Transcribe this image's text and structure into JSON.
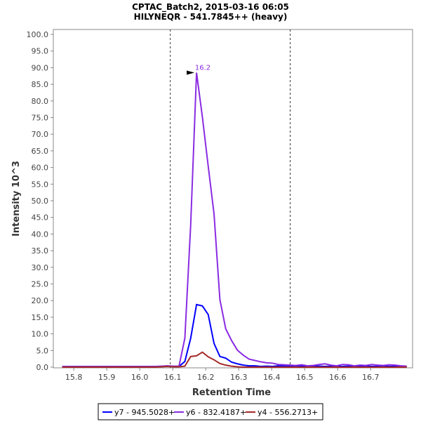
{
  "chart_data": {
    "type": "line",
    "title": "CPTAC_Batch2, 2015-03-16 06:05",
    "subtitle": "HILYNEQR - 541.7845++ (heavy)",
    "xlabel": "Retention Time",
    "ylabel": "Intensity 10^3",
    "xlim": [
      15.738,
      16.827
    ],
    "ylim": [
      0,
      100
    ],
    "x_ticks": [
      "15.8",
      "15.9",
      "16.0",
      "16.1",
      "16.2",
      "16.3",
      "16.4",
      "16.5",
      "16.6",
      "16.7"
    ],
    "y_ticks": [
      "0.0",
      "5.0",
      "10.0",
      "15.0",
      "20.0",
      "25.0",
      "30.0",
      "35.0",
      "40.0",
      "45.0",
      "50.0",
      "55.0",
      "60.0",
      "65.0",
      "70.0",
      "75.0",
      "80.0",
      "85.0",
      "90.0",
      "95.0",
      "100.0"
    ],
    "grid": false,
    "boundaries": [
      16.0925,
      16.456
    ],
    "peak_annotation": {
      "label": "16.2",
      "x": 16.172,
      "y": 88.5,
      "color": "#8a2be2"
    },
    "x_start": 15.765,
    "x_step": 0.0177,
    "series": [
      {
        "name": "y7 - 945.5028+",
        "color": "#0000ff",
        "values": [
          0.2,
          0.2,
          0.2,
          0.2,
          0.2,
          0.2,
          0.2,
          0.2,
          0.2,
          0.2,
          0.2,
          0.2,
          0.2,
          0.2,
          0.2,
          0.2,
          0.2,
          0.2,
          0.3,
          0.2,
          0.2,
          1.7,
          8.7,
          18.8,
          18.4,
          15.8,
          7.1,
          3.2,
          2.7,
          1.5,
          1.0,
          0.6,
          0.4,
          0.4,
          0.2,
          0.3,
          0.2,
          0.4,
          0.3,
          0.3,
          0.2,
          0.3,
          0.2,
          0.3,
          0.3,
          0.2,
          0.3,
          0.2,
          0.2,
          0.3,
          0.2,
          0.2,
          0.3,
          0.2,
          0.2,
          0.3,
          0.2,
          0.2,
          0.2,
          0.2
        ]
      },
      {
        "name": "y6 - 832.4187+",
        "color": "#8a2be2",
        "values": [
          0.2,
          0.2,
          0.2,
          0.2,
          0.2,
          0.2,
          0.2,
          0.2,
          0.2,
          0.2,
          0.2,
          0.2,
          0.2,
          0.2,
          0.2,
          0.2,
          0.2,
          0.3,
          0.4,
          0.3,
          0.3,
          8.7,
          42.8,
          88.5,
          75.2,
          60.4,
          46.0,
          20.3,
          11.5,
          8.0,
          5.1,
          3.6,
          2.4,
          2.0,
          1.6,
          1.3,
          1.2,
          0.8,
          0.7,
          0.6,
          0.5,
          0.7,
          0.4,
          0.5,
          0.8,
          1.0,
          0.6,
          0.4,
          0.8,
          0.7,
          0.4,
          0.6,
          0.5,
          0.8,
          0.6,
          0.5,
          0.7,
          0.6,
          0.4,
          0.3
        ]
      },
      {
        "name": "y4 - 556.2713+",
        "color": "#a52a2a",
        "values": [
          0,
          0,
          0,
          0,
          0,
          0,
          0,
          0,
          0,
          0,
          0,
          0,
          0,
          0,
          0,
          0,
          0,
          0.1,
          0.2,
          0.1,
          0.1,
          0.3,
          3.2,
          3.4,
          4.5,
          3.1,
          2.2,
          1.1,
          0.6,
          0.3,
          0.1,
          0,
          0,
          0,
          0,
          0,
          0,
          0,
          0,
          0,
          0,
          0,
          0,
          0,
          0,
          0,
          0,
          0,
          0,
          0,
          0,
          0,
          0,
          0,
          0,
          0,
          0,
          0,
          0,
          0
        ]
      }
    ]
  }
}
